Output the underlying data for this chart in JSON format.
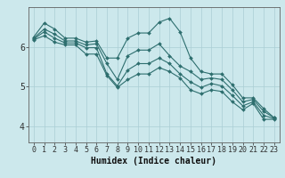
{
  "xlabel": "Humidex (Indice chaleur)",
  "bg_color": "#cce8ec",
  "line_color": "#2d6e6e",
  "grid_color": "#aacdd4",
  "x_ticks": [
    0,
    1,
    2,
    3,
    4,
    5,
    6,
    7,
    8,
    9,
    10,
    11,
    12,
    13,
    14,
    15,
    16,
    17,
    18,
    19,
    20,
    21,
    22,
    23
  ],
  "y_ticks": [
    4,
    5,
    6
  ],
  "ylim": [
    3.6,
    7.0
  ],
  "xlim": [
    -0.5,
    23.5
  ],
  "lines": [
    [
      6.25,
      6.6,
      6.45,
      6.22,
      6.22,
      6.12,
      6.15,
      5.72,
      5.72,
      6.22,
      6.35,
      6.35,
      6.62,
      6.72,
      6.38,
      5.72,
      5.38,
      5.32,
      5.32,
      5.05,
      4.72,
      4.72,
      4.45,
      4.22
    ],
    [
      6.22,
      6.45,
      6.32,
      6.15,
      6.15,
      6.05,
      6.08,
      5.58,
      5.18,
      5.78,
      5.92,
      5.92,
      6.08,
      5.78,
      5.52,
      5.38,
      5.18,
      5.22,
      5.18,
      4.92,
      4.62,
      4.68,
      4.38,
      4.22
    ],
    [
      6.2,
      6.38,
      6.22,
      6.1,
      6.1,
      5.98,
      5.98,
      5.32,
      5.02,
      5.42,
      5.58,
      5.58,
      5.72,
      5.58,
      5.32,
      5.12,
      4.98,
      5.08,
      5.02,
      4.78,
      4.52,
      4.62,
      4.28,
      4.2
    ],
    [
      6.18,
      6.28,
      6.12,
      6.05,
      6.05,
      5.82,
      5.82,
      5.28,
      4.98,
      5.18,
      5.32,
      5.32,
      5.48,
      5.38,
      5.22,
      4.92,
      4.82,
      4.92,
      4.88,
      4.62,
      4.42,
      4.58,
      4.18,
      4.18
    ]
  ],
  "tick_fontsize": 6,
  "xlabel_fontsize": 7
}
